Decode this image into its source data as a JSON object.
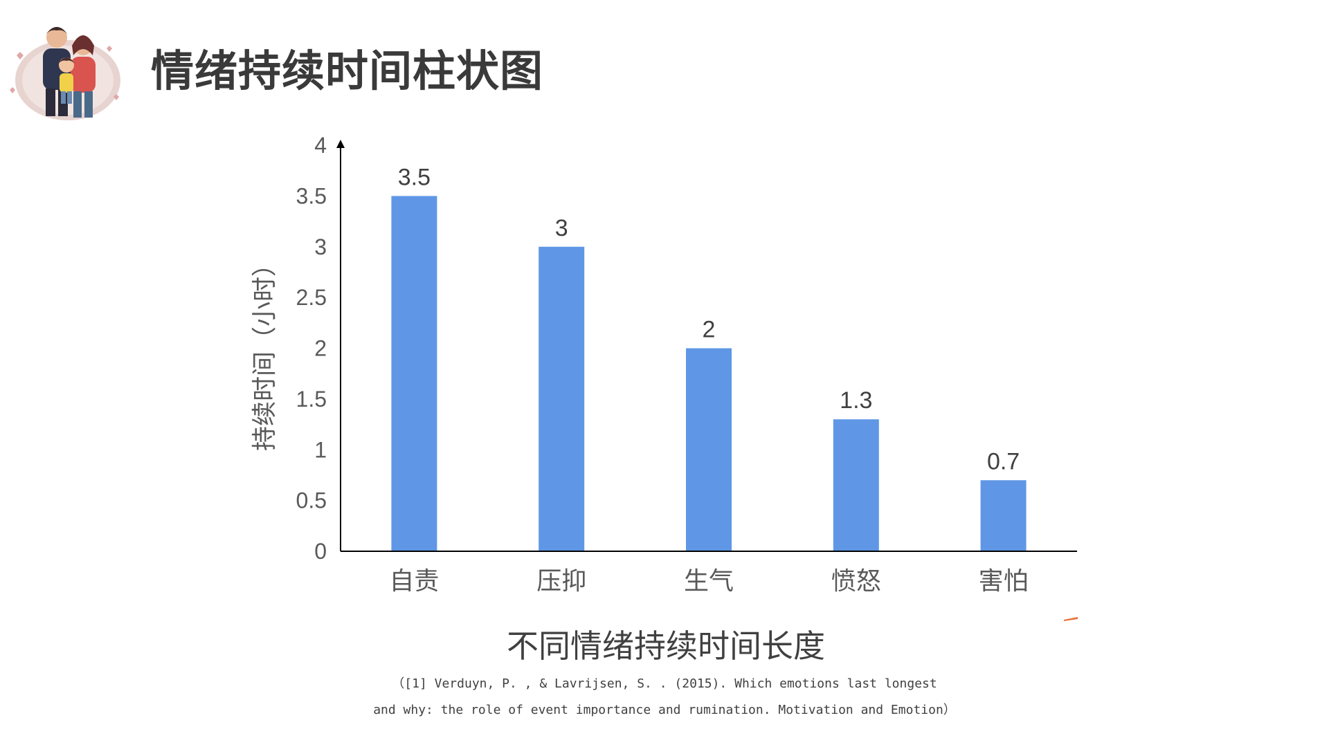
{
  "header": {
    "title": "情绪持续时间柱状图",
    "logo_icon": "family-illustration-icon"
  },
  "chart_data": {
    "type": "bar",
    "categories": [
      "自责",
      "压抑",
      "生气",
      "愤怒",
      "害怕"
    ],
    "values": [
      3.5,
      3,
      2,
      1.3,
      0.7
    ],
    "data_labels": [
      "3.5",
      "3",
      "2",
      "1.3",
      "0.7"
    ],
    "y_ticks": [
      "0",
      "0.5",
      "1",
      "1.5",
      "2",
      "2.5",
      "3",
      "3.5",
      "4"
    ],
    "ylim": [
      0,
      4
    ],
    "ylabel": "持续时间（小时）",
    "xlabel": "不同情绪持续时间长度",
    "bar_color": "#5f97e6",
    "grid": false
  },
  "citation": {
    "line1": "（[1] Verduyn, P. , & Lavrijsen, S. . (2015). Which emotions last longest",
    "line2": "and why: the role of event importance and rumination. Motivation and Emotion）"
  }
}
